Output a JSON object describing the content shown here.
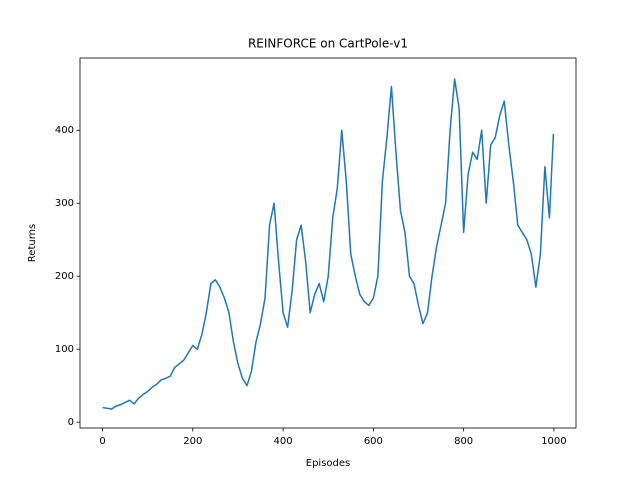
{
  "chart_data": {
    "type": "line",
    "title": "REINFORCE on CartPole-v1",
    "xlabel": "Episodes",
    "ylabel": "Returns",
    "color": "#1f77b4",
    "x": [
      0,
      10,
      20,
      30,
      40,
      50,
      60,
      70,
      80,
      90,
      100,
      110,
      120,
      130,
      140,
      150,
      160,
      170,
      180,
      190,
      200,
      210,
      220,
      230,
      240,
      250,
      260,
      270,
      280,
      290,
      300,
      310,
      320,
      330,
      340,
      350,
      360,
      370,
      380,
      390,
      400,
      410,
      420,
      430,
      440,
      450,
      460,
      470,
      480,
      490,
      500,
      510,
      520,
      530,
      540,
      550,
      560,
      570,
      580,
      590,
      600,
      610,
      620,
      630,
      640,
      650,
      660,
      670,
      680,
      690,
      700,
      710,
      720,
      730,
      740,
      750,
      760,
      770,
      780,
      790,
      800,
      810,
      820,
      830,
      840,
      850,
      860,
      870,
      880,
      890,
      900,
      910,
      920,
      930,
      940,
      950,
      960,
      970,
      980,
      990,
      999
    ],
    "values": [
      20,
      19,
      18,
      22,
      24,
      27,
      30,
      25,
      33,
      38,
      42,
      48,
      52,
      58,
      60,
      63,
      75,
      80,
      85,
      95,
      105,
      100,
      120,
      150,
      190,
      195,
      185,
      170,
      150,
      110,
      80,
      60,
      50,
      70,
      110,
      135,
      170,
      270,
      300,
      220,
      150,
      130,
      180,
      250,
      270,
      220,
      150,
      175,
      190,
      165,
      200,
      280,
      320,
      400,
      330,
      230,
      200,
      175,
      165,
      160,
      170,
      200,
      330,
      390,
      460,
      370,
      290,
      260,
      200,
      190,
      160,
      135,
      150,
      200,
      240,
      270,
      300,
      400,
      470,
      430,
      260,
      340,
      370,
      360,
      400,
      300,
      380,
      390,
      420,
      440,
      380,
      330,
      270,
      260,
      250,
      230,
      185,
      230,
      350,
      280,
      395
    ],
    "xlim": [
      -49.95,
      1048.95
    ],
    "xticks": [
      0,
      200,
      400,
      600,
      800,
      1000
    ],
    "ylim": [
      -8,
      499
    ],
    "yticks": [
      0,
      100,
      200,
      300,
      400
    ]
  }
}
